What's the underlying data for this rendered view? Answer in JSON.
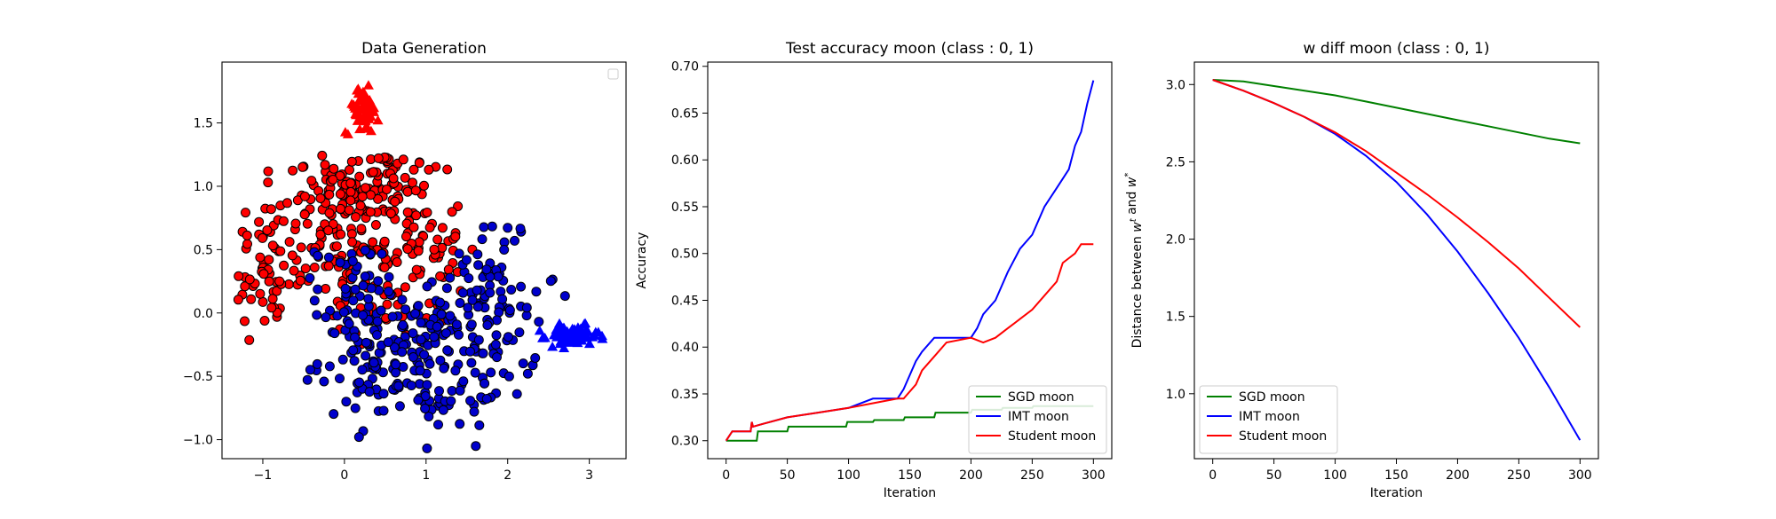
{
  "chart_data": [
    {
      "type": "scatter",
      "title": "Data Generation",
      "xlabel": "",
      "ylabel": "",
      "xlim": [
        -1.5,
        3.45
      ],
      "ylim": [
        -1.15,
        1.98
      ],
      "xticks": [
        -1,
        0,
        1,
        2,
        3
      ],
      "yticks": [
        -1.0,
        -0.5,
        0.0,
        0.5,
        1.0,
        1.5
      ],
      "xtick_labels": [
        "−1",
        "0",
        "1",
        "2",
        "3"
      ],
      "ytick_labels": [
        "−1.0",
        "−0.5",
        "0.0",
        "0.5",
        "1.0",
        "1.5"
      ],
      "legend": "upper right (empty)",
      "series": [
        {
          "marker": "circle",
          "color": "#ff0000",
          "clusters": [
            {
              "cx": -0.2,
              "cy": 0.65,
              "sx": 0.55,
              "sy": 0.35,
              "n": 140
            },
            {
              "cx": 0.35,
              "cy": 1.0,
              "sx": 0.35,
              "sy": 0.15,
              "n": 80
            },
            {
              "cx": 0.85,
              "cy": 0.55,
              "sx": 0.3,
              "sy": 0.25,
              "n": 70
            },
            {
              "cx": -1.0,
              "cy": 0.25,
              "sx": 0.22,
              "sy": 0.2,
              "n": 40
            },
            {
              "cx": 0.6,
              "cy": 0.05,
              "sx": 0.35,
              "sy": 0.15,
              "n": 30
            }
          ]
        },
        {
          "marker": "circle",
          "color": "#0000cc",
          "clusters": [
            {
              "cx": 0.6,
              "cy": -0.35,
              "sx": 0.45,
              "sy": 0.25,
              "n": 150
            },
            {
              "cx": 1.65,
              "cy": -0.2,
              "sx": 0.35,
              "sy": 0.25,
              "n": 80
            },
            {
              "cx": 1.8,
              "cy": 0.3,
              "sx": 0.25,
              "sy": 0.25,
              "n": 50
            },
            {
              "cx": 0.05,
              "cy": 0.15,
              "sx": 0.2,
              "sy": 0.2,
              "n": 40
            },
            {
              "cx": 1.2,
              "cy": -0.75,
              "sx": 0.3,
              "sy": 0.1,
              "n": 20
            }
          ]
        },
        {
          "marker": "triangle",
          "color": "#ff0000",
          "clusters": [
            {
              "cx": 0.22,
              "cy": 1.6,
              "sx": 0.1,
              "sy": 0.09,
              "n": 60
            }
          ]
        },
        {
          "marker": "triangle",
          "color": "#0000ff",
          "clusters": [
            {
              "cx": 2.8,
              "cy": -0.18,
              "sx": 0.16,
              "sy": 0.04,
              "n": 70
            }
          ]
        }
      ]
    },
    {
      "type": "line",
      "title": "Test accuracy moon (class : 0, 1)",
      "xlabel": "Iteration",
      "ylabel": "Accuracy",
      "xlim": [
        -15,
        315
      ],
      "ylim": [
        0.2808,
        0.7045
      ],
      "xticks": [
        0,
        50,
        100,
        150,
        200,
        250,
        300
      ],
      "yticks": [
        0.3,
        0.35,
        0.4,
        0.45,
        0.5,
        0.55,
        0.6,
        0.65,
        0.7
      ],
      "xtick_labels": [
        "0",
        "50",
        "100",
        "150",
        "200",
        "250",
        "300"
      ],
      "ytick_labels": [
        "0.30",
        "0.35",
        "0.40",
        "0.45",
        "0.50",
        "0.55",
        "0.60",
        "0.65",
        "0.70"
      ],
      "legend": "lower right",
      "series": [
        {
          "name": "SGD moon",
          "color": "#008000",
          "x": [
            0,
            25,
            26,
            50,
            51,
            98,
            99,
            120,
            121,
            145,
            146,
            170,
            171,
            200,
            201,
            225,
            226,
            250,
            251,
            300
          ],
          "y": [
            0.3,
            0.3,
            0.31,
            0.31,
            0.315,
            0.315,
            0.32,
            0.32,
            0.322,
            0.322,
            0.325,
            0.325,
            0.33,
            0.33,
            0.333,
            0.333,
            0.335,
            0.335,
            0.337,
            0.337
          ]
        },
        {
          "name": "IMT moon",
          "color": "#0000ff",
          "x": [
            0,
            5,
            20,
            21,
            22,
            30,
            50,
            75,
            100,
            120,
            140,
            145,
            150,
            155,
            160,
            170,
            180,
            200,
            205,
            210,
            220,
            230,
            240,
            250,
            260,
            270,
            280,
            285,
            290,
            295,
            300
          ],
          "y": [
            0.3,
            0.31,
            0.31,
            0.32,
            0.315,
            0.318,
            0.325,
            0.33,
            0.335,
            0.345,
            0.345,
            0.355,
            0.37,
            0.385,
            0.395,
            0.41,
            0.41,
            0.41,
            0.42,
            0.435,
            0.45,
            0.48,
            0.505,
            0.52,
            0.55,
            0.57,
            0.59,
            0.615,
            0.63,
            0.66,
            0.685
          ]
        },
        {
          "name": "Student moon",
          "color": "#ff0000",
          "x": [
            0,
            5,
            20,
            21,
            22,
            30,
            50,
            75,
            100,
            120,
            140,
            145,
            155,
            160,
            170,
            180,
            200,
            210,
            220,
            230,
            240,
            250,
            260,
            270,
            275,
            280,
            285,
            290,
            295,
            300
          ],
          "y": [
            0.3,
            0.31,
            0.31,
            0.32,
            0.315,
            0.318,
            0.325,
            0.33,
            0.335,
            0.34,
            0.345,
            0.345,
            0.36,
            0.375,
            0.39,
            0.405,
            0.41,
            0.405,
            0.41,
            0.42,
            0.43,
            0.44,
            0.455,
            0.47,
            0.49,
            0.495,
            0.5,
            0.51,
            0.51,
            0.51
          ]
        }
      ]
    },
    {
      "type": "line",
      "title": "w diff moon (class : 0, 1)",
      "xlabel": "Iteration",
      "ylabel": "Distance between w^t and w^*",
      "xlim": [
        -15,
        315
      ],
      "ylim": [
        0.58,
        3.145
      ],
      "xticks": [
        0,
        50,
        100,
        150,
        200,
        250,
        300
      ],
      "yticks": [
        1.0,
        1.5,
        2.0,
        2.5,
        3.0
      ],
      "xtick_labels": [
        "0",
        "50",
        "100",
        "150",
        "200",
        "250",
        "300"
      ],
      "ytick_labels": [
        "1.0",
        "1.5",
        "2.0",
        "2.5",
        "3.0"
      ],
      "legend": "lower left",
      "series": [
        {
          "name": "SGD moon",
          "color": "#008000",
          "x": [
            0,
            25,
            50,
            75,
            100,
            125,
            150,
            175,
            200,
            225,
            250,
            275,
            300
          ],
          "y": [
            3.03,
            3.02,
            2.99,
            2.96,
            2.93,
            2.89,
            2.85,
            2.81,
            2.77,
            2.73,
            2.69,
            2.65,
            2.62
          ]
        },
        {
          "name": "IMT moon",
          "color": "#0000ff",
          "x": [
            0,
            25,
            50,
            75,
            100,
            125,
            150,
            175,
            200,
            225,
            250,
            275,
            300
          ],
          "y": [
            3.03,
            2.96,
            2.88,
            2.79,
            2.68,
            2.54,
            2.37,
            2.16,
            1.92,
            1.65,
            1.36,
            1.04,
            0.7
          ]
        },
        {
          "name": "Student moon",
          "color": "#ff0000",
          "x": [
            0,
            25,
            50,
            75,
            100,
            125,
            150,
            175,
            200,
            225,
            250,
            275,
            300
          ],
          "y": [
            3.03,
            2.96,
            2.88,
            2.79,
            2.69,
            2.57,
            2.43,
            2.29,
            2.14,
            1.98,
            1.81,
            1.62,
            1.43
          ]
        }
      ]
    }
  ]
}
